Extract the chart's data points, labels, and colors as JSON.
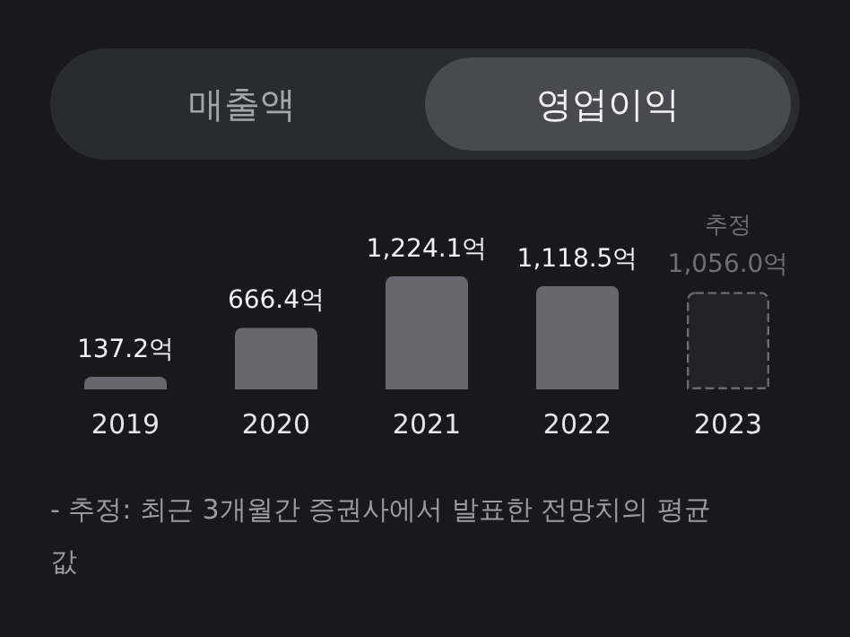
{
  "chart_data": {
    "type": "bar",
    "categories": [
      "2019",
      "2020",
      "2021",
      "2022",
      "2023"
    ],
    "stacked": true,
    "data_labels": false,
    "grid": false,
    "tick_labels": "x",
    "series": [
      {
        "color": "#68676f",
        "values": [
          137.2,
          666.4,
          1224.1,
          1118.5,
          null
        ],
        "value_labels": [
          "137.2억",
          "666.4억",
          "1,224.1억",
          "1,118.5억",
          null
        ]
      },
      {
        "color": "#222228",
        "line_style": "dashed",
        "values": [
          null,
          null,
          null,
          null,
          1056.0
        ],
        "value_labels": [
          null,
          null,
          null,
          null,
          "1,056.0억"
        ]
      }
    ],
    "annotations": [
      "매출액",
      "영업이익",
      "추정",
      "- 추정: 최근 3개월간 증권사에서 발표한 전망치의 평균값"
    ]
  }
}
